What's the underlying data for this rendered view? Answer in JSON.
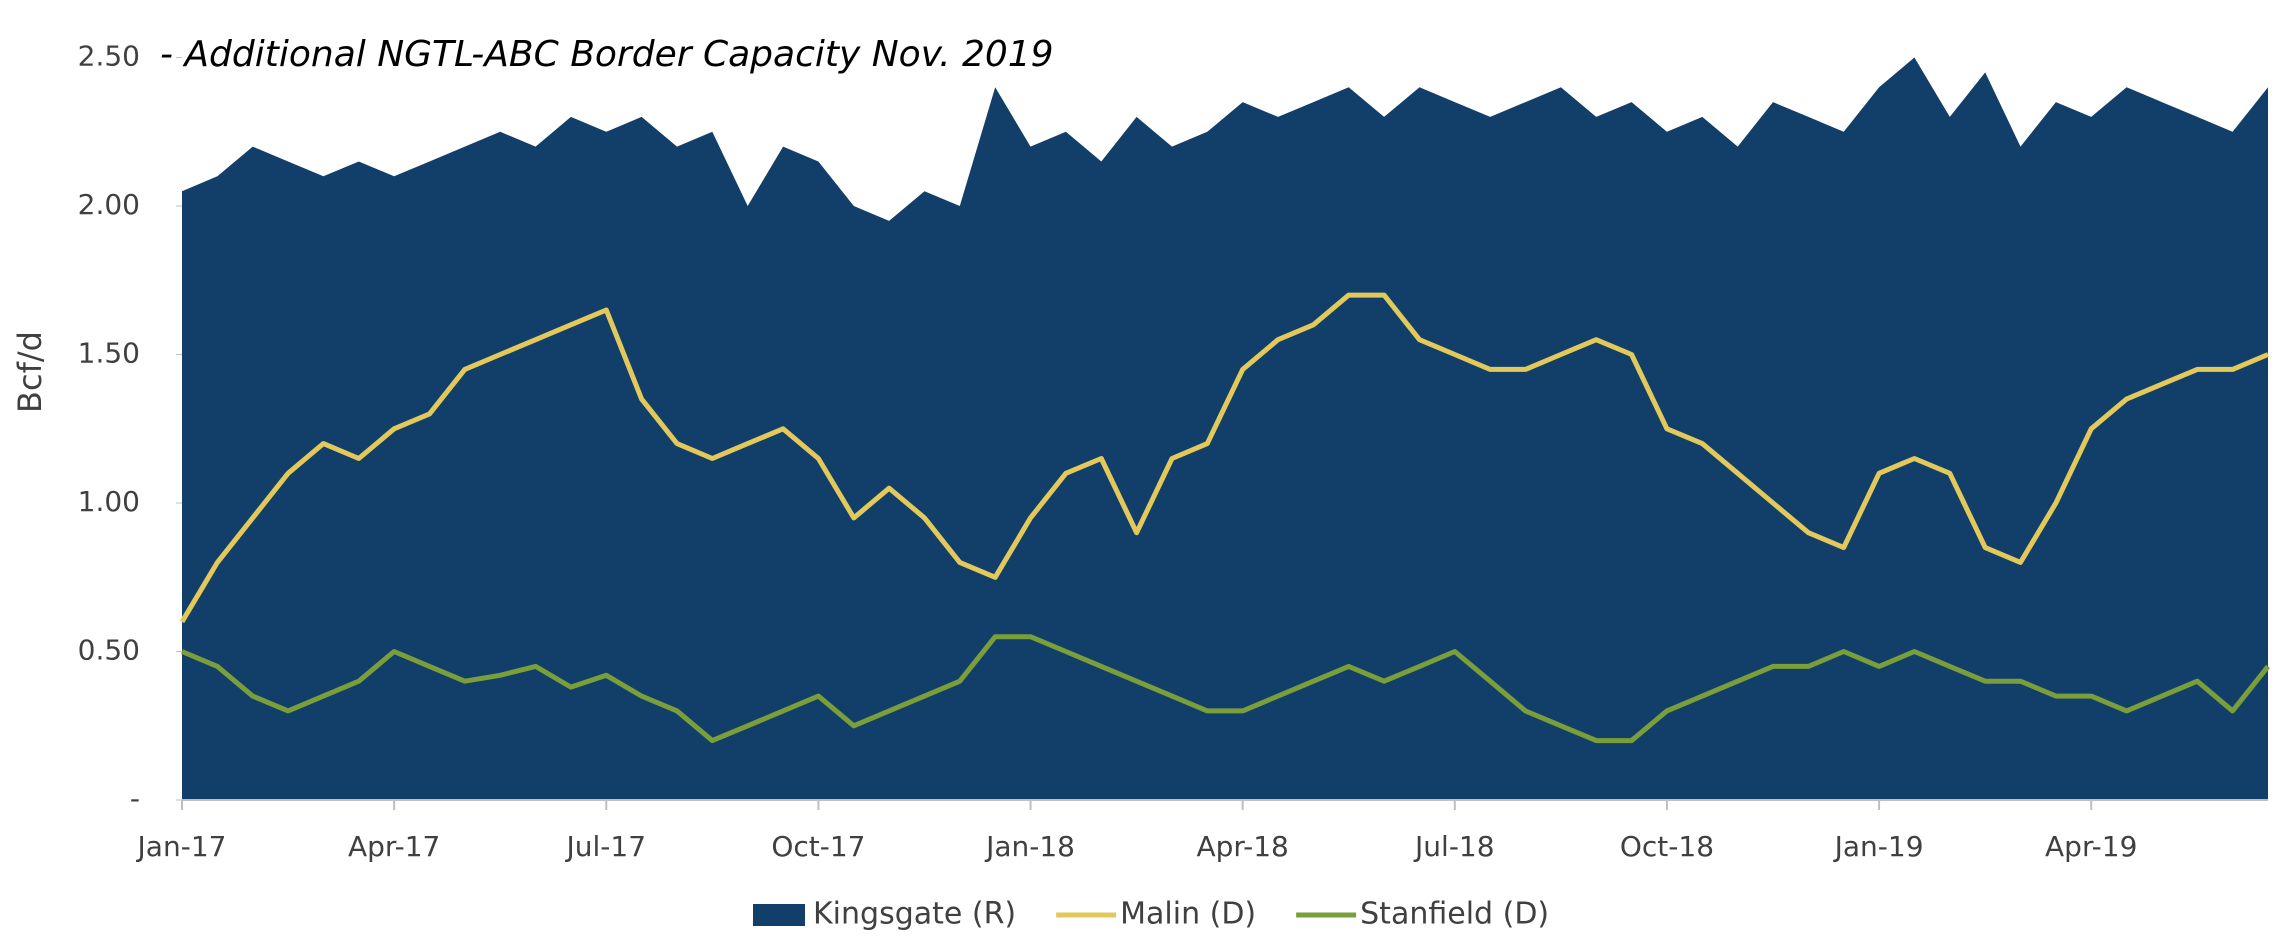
{
  "chart_data": {
    "type": "area-line",
    "annotation": "- Additional NGTL-ABC Border Capacity Nov. 2019",
    "y_label": "Bcf/d",
    "categories": [
      "Jan-17",
      null,
      null,
      null,
      null,
      null,
      "Apr-17",
      null,
      null,
      null,
      null,
      null,
      "Jul-17",
      null,
      null,
      null,
      null,
      null,
      "Oct-17",
      null,
      null,
      null,
      null,
      null,
      "Jan-18",
      null,
      null,
      null,
      null,
      null,
      "Apr-18",
      null,
      null,
      null,
      null,
      null,
      "Jul-18",
      null,
      null,
      null,
      null,
      null,
      "Oct-18",
      null,
      null,
      null,
      null,
      null,
      "Jan-19",
      null,
      null,
      null,
      null,
      null,
      "Apr-19",
      null,
      null,
      null,
      null,
      null
    ],
    "series": [
      {
        "name": "Kingsgate (R)",
        "kind": "area",
        "color": "#123f6a",
        "values": [
          2.05,
          2.1,
          2.2,
          2.15,
          2.1,
          2.15,
          2.1,
          2.15,
          2.2,
          2.25,
          2.2,
          2.3,
          2.25,
          2.3,
          2.2,
          2.25,
          2.0,
          2.2,
          2.15,
          2.0,
          1.95,
          2.05,
          2.0,
          2.4,
          2.2,
          2.25,
          2.15,
          2.3,
          2.2,
          2.25,
          2.35,
          2.3,
          2.35,
          2.4,
          2.3,
          2.4,
          2.35,
          2.3,
          2.35,
          2.4,
          2.3,
          2.35,
          2.25,
          2.3,
          2.2,
          2.35,
          2.3,
          2.25,
          2.4,
          2.5,
          2.3,
          2.45,
          2.2,
          2.35,
          2.3,
          2.4,
          2.35,
          2.3,
          2.25,
          2.4
        ]
      },
      {
        "name": "Malin (D)",
        "kind": "line",
        "color": "#e3c85a",
        "values": [
          0.6,
          0.8,
          0.95,
          1.1,
          1.2,
          1.15,
          1.25,
          1.3,
          1.45,
          1.5,
          1.55,
          1.6,
          1.65,
          1.35,
          1.2,
          1.15,
          1.2,
          1.25,
          1.15,
          0.95,
          1.05,
          0.95,
          0.8,
          0.75,
          0.95,
          1.1,
          1.15,
          0.9,
          1.15,
          1.2,
          1.45,
          1.55,
          1.6,
          1.7,
          1.7,
          1.55,
          1.5,
          1.45,
          1.45,
          1.5,
          1.55,
          1.5,
          1.25,
          1.2,
          1.1,
          1.0,
          0.9,
          0.85,
          1.1,
          1.15,
          1.1,
          0.85,
          0.8,
          1.0,
          1.25,
          1.35,
          1.4,
          1.45,
          1.45,
          1.5
        ]
      },
      {
        "name": "Stanfield (D)",
        "kind": "line",
        "color": "#7a9e3a",
        "values": [
          0.5,
          0.45,
          0.35,
          0.3,
          0.35,
          0.4,
          0.5,
          0.45,
          0.4,
          0.42,
          0.45,
          0.38,
          0.42,
          0.35,
          0.3,
          0.2,
          0.25,
          0.3,
          0.35,
          0.25,
          0.3,
          0.35,
          0.4,
          0.55,
          0.55,
          0.5,
          0.45,
          0.4,
          0.35,
          0.3,
          0.3,
          0.35,
          0.4,
          0.45,
          0.4,
          0.45,
          0.5,
          0.4,
          0.3,
          0.25,
          0.2,
          0.2,
          0.3,
          0.35,
          0.4,
          0.45,
          0.45,
          0.5,
          0.45,
          0.5,
          0.45,
          0.4,
          0.4,
          0.35,
          0.35,
          0.3,
          0.35,
          0.4,
          0.3,
          0.45
        ]
      }
    ],
    "ylim": [
      0,
      2.65
    ],
    "yticks": [
      {
        "value": 0,
        "label": "-"
      },
      {
        "value": 0.5,
        "label": "0.50"
      },
      {
        "value": 1,
        "label": "1.00"
      },
      {
        "value": 1.5,
        "label": "1.50"
      },
      {
        "value": 2,
        "label": "2.00"
      },
      {
        "value": 2.5,
        "label": "2.50"
      }
    ],
    "grid": false,
    "legend": "bottom"
  }
}
